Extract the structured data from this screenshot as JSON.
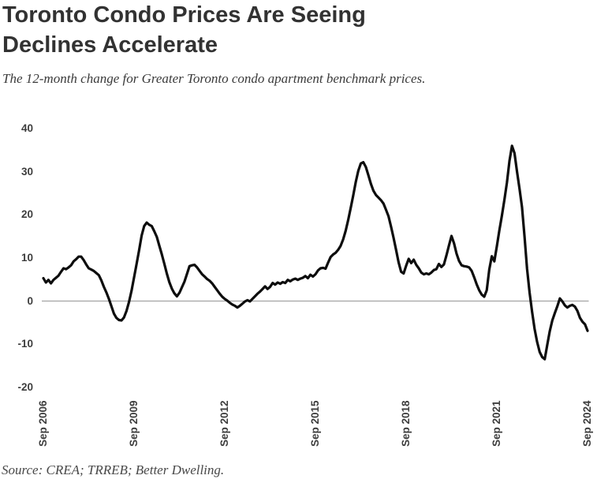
{
  "header": {
    "title": "Toronto Condo Prices Are Seeing\nDeclines Accelerate",
    "subtitle": "The 12-month change for Greater Toronto condo apartment benchmark prices."
  },
  "footer": {
    "source": "Source: CREA; TRREB; Better Dwelling."
  },
  "colors": {
    "line": "#0d0d0d",
    "zero_line": "#a3a3a3",
    "tick_text": "#3d3d3d"
  },
  "chart_data": {
    "type": "line",
    "title": "Toronto Condo Prices Are Seeing Declines Accelerate",
    "subtitle": "The 12-month change for Greater Toronto condo apartment benchmark prices.",
    "xlabel": "",
    "ylabel": "",
    "frequency": "monthly",
    "x_start": "Sep 2006",
    "x_end": "Sep 2024",
    "x_tick_labels": [
      "Sep 2006",
      "Sep 2009",
      "Sep 2012",
      "Sep 2015",
      "Sep 2018",
      "Sep 2021",
      "Sep 2024"
    ],
    "x_tick_month_index": [
      0,
      36,
      72,
      108,
      144,
      180,
      216
    ],
    "y_ticks": [
      40,
      30,
      20,
      10,
      0,
      -10,
      -20
    ],
    "ylim": [
      -20,
      40
    ],
    "grid": "zero-line-only",
    "legend_position": "none",
    "series": [
      {
        "name": "12-month change (%)",
        "values": [
          5.3,
          4.3,
          4.9,
          4.1,
          4.9,
          5.4,
          5.9,
          6.8,
          7.6,
          7.4,
          7.8,
          8.3,
          9.2,
          9.7,
          10.3,
          10.3,
          9.5,
          8.5,
          7.6,
          7.3,
          7.0,
          6.5,
          6.0,
          4.8,
          3.3,
          2.0,
          0.5,
          -1.2,
          -2.9,
          -3.9,
          -4.4,
          -4.5,
          -3.8,
          -2.3,
          -0.2,
          2.4,
          5.5,
          8.6,
          11.8,
          15.2,
          17.4,
          18.2,
          17.7,
          17.4,
          16.2,
          14.9,
          12.9,
          10.9,
          8.7,
          6.4,
          4.4,
          2.9,
          1.8,
          1.1,
          1.9,
          3.2,
          4.5,
          6.3,
          8.1,
          8.3,
          8.4,
          7.8,
          7.0,
          6.2,
          5.7,
          5.1,
          4.7,
          4.1,
          3.3,
          2.5,
          1.7,
          1.0,
          0.5,
          0.1,
          -0.4,
          -0.8,
          -1.1,
          -1.5,
          -1.1,
          -0.6,
          -0.1,
          0.2,
          -0.1,
          0.5,
          1.1,
          1.7,
          2.2,
          2.8,
          3.4,
          2.8,
          3.3,
          4.2,
          3.8,
          4.3,
          4.0,
          4.4,
          4.2,
          4.9,
          4.6,
          5.0,
          5.2,
          4.9,
          5.2,
          5.4,
          5.8,
          5.3,
          6.1,
          5.7,
          6.2,
          7.1,
          7.6,
          7.7,
          7.5,
          8.9,
          10.2,
          10.8,
          11.2,
          11.9,
          12.8,
          14.3,
          16.3,
          18.8,
          21.6,
          24.5,
          27.6,
          30.2,
          31.9,
          32.2,
          31.1,
          29.2,
          27.2,
          25.6,
          24.6,
          24.0,
          23.4,
          22.6,
          21.2,
          19.7,
          17.3,
          14.7,
          11.9,
          9.0,
          6.8,
          6.4,
          8.2,
          9.8,
          8.8,
          9.6,
          8.4,
          7.6,
          6.6,
          6.2,
          6.4,
          6.2,
          6.6,
          7.2,
          7.4,
          8.6,
          7.9,
          8.5,
          10.6,
          12.9,
          15.1,
          13.4,
          11.0,
          9.3,
          8.3,
          8.1,
          8.0,
          7.8,
          7.0,
          5.5,
          3.9,
          2.5,
          1.5,
          1.0,
          2.5,
          7.3,
          10.4,
          9.2,
          12.7,
          16.4,
          19.8,
          23.5,
          27.5,
          32.5,
          36.0,
          34.3,
          30.0,
          26.0,
          21.8,
          15.0,
          7.5,
          2.0,
          -2.5,
          -6.5,
          -9.5,
          -11.8,
          -13.0,
          -13.5,
          -10.2,
          -7.0,
          -4.5,
          -2.8,
          -1.2,
          0.6,
          -0.1,
          -1.0,
          -1.5,
          -1.1,
          -0.9,
          -1.3,
          -2.3,
          -3.9,
          -4.8,
          -5.4,
          -6.9
        ]
      }
    ]
  }
}
